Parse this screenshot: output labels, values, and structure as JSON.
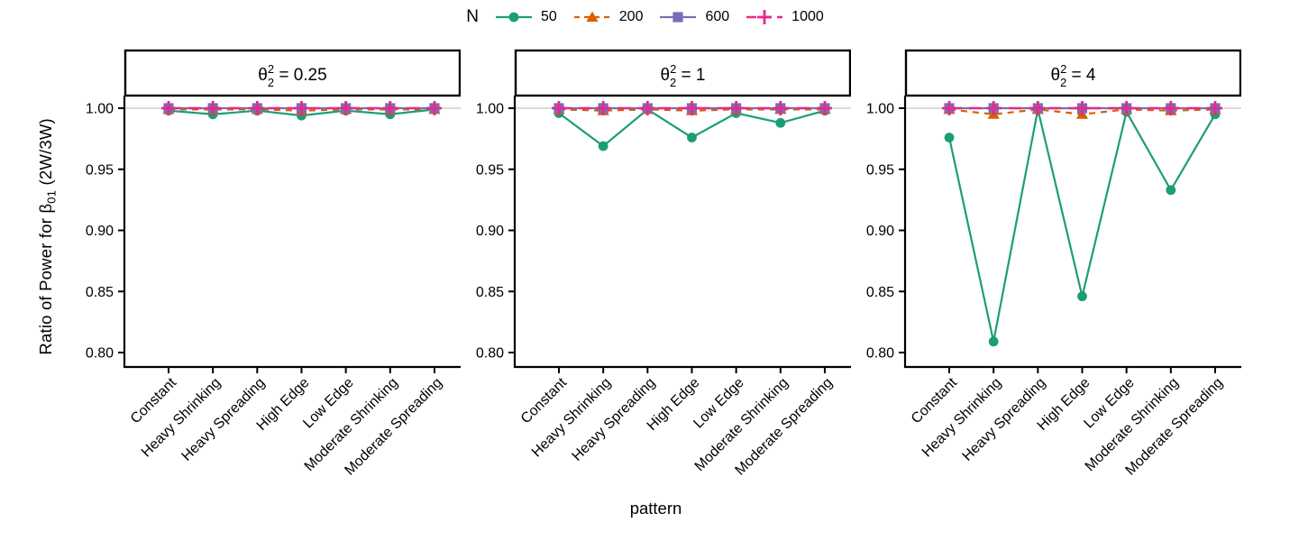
{
  "legend": {
    "title": "N",
    "entries": [
      {
        "label": "50",
        "color": "#1B9E77",
        "marker": "circle",
        "linetype": "solid"
      },
      {
        "label": "200",
        "color": "#D95F02",
        "marker": "triangle",
        "linetype": "dashed"
      },
      {
        "label": "600",
        "color": "#7570B3",
        "marker": "square",
        "linetype": "solid"
      },
      {
        "label": "1000",
        "color": "#E7298A",
        "marker": "plus",
        "linetype": "dashed"
      }
    ]
  },
  "axes": {
    "y_title": {
      "prefix": "Ratio of Power for ",
      "beta": "β",
      "subscript": "01",
      "suffix": " (2W/3W)"
    },
    "x_title": "pattern",
    "y_tick_labels": [
      "1.00",
      "0.95",
      "0.90",
      "0.85",
      "0.80"
    ],
    "y_tick_values": [
      1.0,
      0.95,
      0.9,
      0.85,
      0.8
    ]
  },
  "chart_data": {
    "type": "line",
    "legend_position": "top",
    "grid": "horizontal reference line at y = 1.00 only",
    "ylim": [
      0.79,
      1.012
    ],
    "reference_line": 1.0,
    "categories": [
      "Constant",
      "Heavy Shrinking",
      "Heavy Spreading",
      "High Edge",
      "Low Edge",
      "Moderate Shrinking",
      "Moderate Spreading"
    ],
    "facets": [
      {
        "title": {
          "symbol": "θ",
          "sup": "2",
          "sub": "2",
          "rest": " = 0.25"
        },
        "title_plain": "theta_2^2 = 0.25",
        "series": [
          {
            "name": "50",
            "values": [
              0.998,
              0.995,
              0.998,
              0.994,
              0.998,
              0.995,
              0.999
            ]
          },
          {
            "name": "200",
            "values": [
              0.999,
              0.999,
              0.999,
              0.998,
              0.999,
              0.999,
              0.999
            ]
          },
          {
            "name": "600",
            "values": [
              1.0,
              1.0,
              1.0,
              1.0,
              1.0,
              1.0,
              1.0
            ]
          },
          {
            "name": "1000",
            "values": [
              1.0,
              1.0,
              1.0,
              1.0,
              1.0,
              1.0,
              1.0
            ]
          }
        ]
      },
      {
        "title": {
          "symbol": "θ",
          "sup": "2",
          "sub": "2",
          "rest": " = 1"
        },
        "title_plain": "theta_2^2 = 1",
        "series": [
          {
            "name": "50",
            "values": [
              0.996,
              0.969,
              0.999,
              0.976,
              0.996,
              0.988,
              0.998
            ]
          },
          {
            "name": "200",
            "values": [
              0.999,
              0.998,
              0.999,
              0.998,
              0.999,
              0.999,
              0.999
            ]
          },
          {
            "name": "600",
            "values": [
              1.0,
              1.0,
              1.0,
              1.0,
              1.0,
              1.0,
              1.0
            ]
          },
          {
            "name": "1000",
            "values": [
              1.0,
              1.0,
              1.0,
              1.0,
              1.0,
              1.0,
              1.0
            ]
          }
        ]
      },
      {
        "title": {
          "symbol": "θ",
          "sup": "2",
          "sub": "2",
          "rest": " = 4"
        },
        "title_plain": "theta_2^2 = 4",
        "series": [
          {
            "name": "50",
            "values": [
              0.976,
              0.809,
              0.999,
              0.846,
              0.997,
              0.933,
              0.995
            ]
          },
          {
            "name": "200",
            "values": [
              0.999,
              0.995,
              0.999,
              0.995,
              0.999,
              0.998,
              0.999
            ]
          },
          {
            "name": "600",
            "values": [
              1.0,
              1.0,
              1.0,
              1.0,
              1.0,
              1.0,
              1.0
            ]
          },
          {
            "name": "1000",
            "values": [
              1.0,
              1.0,
              1.0,
              1.0,
              1.0,
              1.0,
              1.0
            ]
          }
        ]
      }
    ]
  },
  "colors": {
    "background": "#ffffff",
    "axis": "#000000",
    "reference_line": "#cfcfcf",
    "strip_border": "#000000",
    "strip_fill": "#ffffff"
  }
}
